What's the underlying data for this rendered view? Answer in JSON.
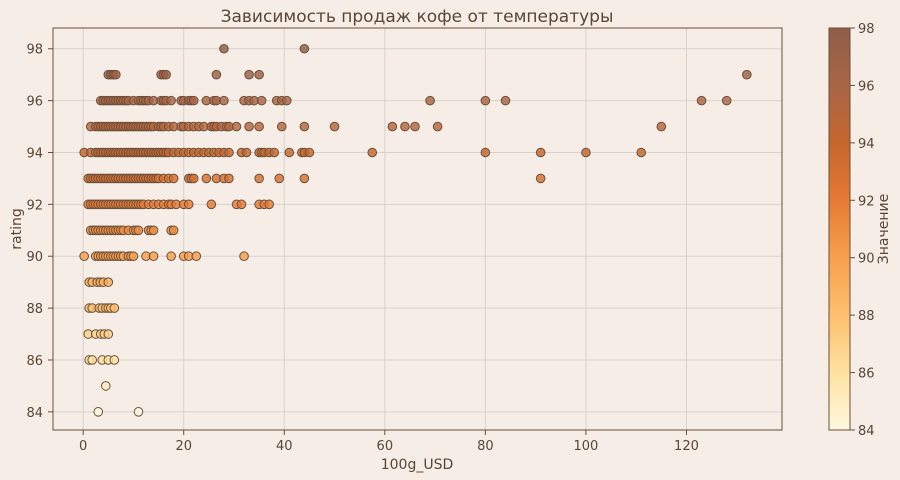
{
  "chart_data": {
    "type": "scatter",
    "title": "Зависимость продаж кофе от температуры",
    "xlabel": "100g_USD",
    "ylabel": "rating",
    "xlim": [
      -6,
      139
    ],
    "ylim": [
      83.3,
      98.8
    ],
    "x_ticks": [
      "0",
      "20",
      "40",
      "60",
      "80",
      "100",
      "120"
    ],
    "y_ticks": [
      "84",
      "86",
      "88",
      "90",
      "92",
      "94",
      "96",
      "98"
    ],
    "grid": true,
    "colorbar": {
      "label": "Значение",
      "range": [
        84,
        98
      ],
      "ticks": [
        "84",
        "86",
        "88",
        "90",
        "92",
        "94",
        "96",
        "98"
      ],
      "colors": [
        "#fff8df",
        "#fde2a0",
        "#fdbf6f",
        "#f7a04d",
        "#e57a34",
        "#c5662e",
        "#a96546",
        "#8f5e48"
      ]
    },
    "points": [
      [
        28,
        98
      ],
      [
        44,
        98
      ],
      [
        5,
        97
      ],
      [
        5.5,
        97
      ],
      [
        6,
        97
      ],
      [
        6.5,
        97
      ],
      [
        15.5,
        97
      ],
      [
        16,
        97
      ],
      [
        16.5,
        97
      ],
      [
        26.5,
        97
      ],
      [
        33,
        97
      ],
      [
        35,
        97
      ],
      [
        132,
        97
      ],
      [
        3.5,
        96
      ],
      [
        4,
        96
      ],
      [
        4.5,
        96
      ],
      [
        5,
        96
      ],
      [
        5.5,
        96
      ],
      [
        6,
        96
      ],
      [
        6.5,
        96
      ],
      [
        7,
        96
      ],
      [
        7.5,
        96
      ],
      [
        8,
        96
      ],
      [
        8.5,
        96
      ],
      [
        9,
        96
      ],
      [
        10,
        96
      ],
      [
        11,
        96
      ],
      [
        11.5,
        96
      ],
      [
        12,
        96
      ],
      [
        12.5,
        96
      ],
      [
        13,
        96
      ],
      [
        14,
        96
      ],
      [
        15.5,
        96
      ],
      [
        16,
        96
      ],
      [
        16.5,
        96
      ],
      [
        17.5,
        96
      ],
      [
        19.5,
        96
      ],
      [
        20,
        96
      ],
      [
        21,
        96
      ],
      [
        21.5,
        96
      ],
      [
        22,
        96
      ],
      [
        24.5,
        96
      ],
      [
        26,
        96
      ],
      [
        26.5,
        96
      ],
      [
        28,
        96
      ],
      [
        32,
        96
      ],
      [
        33,
        96
      ],
      [
        34,
        96
      ],
      [
        35.5,
        96
      ],
      [
        38.5,
        96
      ],
      [
        39.5,
        96
      ],
      [
        40.5,
        96
      ],
      [
        69,
        96
      ],
      [
        80,
        96
      ],
      [
        84,
        96
      ],
      [
        123,
        96
      ],
      [
        128,
        96
      ],
      [
        1.5,
        95
      ],
      [
        2.5,
        95
      ],
      [
        3,
        95
      ],
      [
        3.5,
        95
      ],
      [
        4,
        95
      ],
      [
        4.5,
        95
      ],
      [
        5,
        95
      ],
      [
        5.5,
        95
      ],
      [
        6,
        95
      ],
      [
        6.5,
        95
      ],
      [
        7,
        95
      ],
      [
        7.5,
        95
      ],
      [
        8,
        95
      ],
      [
        8.5,
        95
      ],
      [
        9,
        95
      ],
      [
        9.5,
        95
      ],
      [
        10,
        95
      ],
      [
        10.5,
        95
      ],
      [
        11,
        95
      ],
      [
        11.5,
        95
      ],
      [
        12,
        95
      ],
      [
        12.5,
        95
      ],
      [
        13,
        95
      ],
      [
        13.5,
        95
      ],
      [
        14,
        95
      ],
      [
        15,
        95
      ],
      [
        15.5,
        95
      ],
      [
        16,
        95
      ],
      [
        17,
        95
      ],
      [
        18,
        95
      ],
      [
        19.5,
        95
      ],
      [
        20,
        95
      ],
      [
        21,
        95
      ],
      [
        22,
        95
      ],
      [
        23,
        95
      ],
      [
        24,
        95
      ],
      [
        25.5,
        95
      ],
      [
        26,
        95
      ],
      [
        26.5,
        95
      ],
      [
        27.5,
        95
      ],
      [
        28.5,
        95
      ],
      [
        29,
        95
      ],
      [
        30.5,
        95
      ],
      [
        33,
        95
      ],
      [
        35,
        95
      ],
      [
        39.5,
        95
      ],
      [
        44,
        95
      ],
      [
        50,
        95
      ],
      [
        61.5,
        95
      ],
      [
        64,
        95
      ],
      [
        66,
        95
      ],
      [
        70.5,
        95
      ],
      [
        115,
        95
      ],
      [
        0.2,
        94
      ],
      [
        1.5,
        94
      ],
      [
        2.5,
        94
      ],
      [
        3,
        94
      ],
      [
        3.5,
        94
      ],
      [
        4,
        94
      ],
      [
        4.5,
        94
      ],
      [
        5,
        94
      ],
      [
        5.5,
        94
      ],
      [
        6,
        94
      ],
      [
        6.5,
        94
      ],
      [
        7,
        94
      ],
      [
        7.5,
        94
      ],
      [
        8,
        94
      ],
      [
        8.5,
        94
      ],
      [
        9,
        94
      ],
      [
        9.5,
        94
      ],
      [
        10,
        94
      ],
      [
        10.5,
        94
      ],
      [
        11,
        94
      ],
      [
        11.5,
        94
      ],
      [
        12,
        94
      ],
      [
        12.5,
        94
      ],
      [
        13,
        94
      ],
      [
        13.5,
        94
      ],
      [
        14,
        94
      ],
      [
        14.5,
        94
      ],
      [
        15,
        94
      ],
      [
        15.5,
        94
      ],
      [
        16,
        94
      ],
      [
        16.5,
        94
      ],
      [
        17,
        94
      ],
      [
        18,
        94
      ],
      [
        19,
        94
      ],
      [
        20,
        94
      ],
      [
        21,
        94
      ],
      [
        22,
        94
      ],
      [
        23,
        94
      ],
      [
        24,
        94
      ],
      [
        25,
        94
      ],
      [
        26,
        94
      ],
      [
        27,
        94
      ],
      [
        28,
        94
      ],
      [
        29,
        94
      ],
      [
        31.5,
        94
      ],
      [
        32.5,
        94
      ],
      [
        35,
        94
      ],
      [
        35.5,
        94
      ],
      [
        36,
        94
      ],
      [
        37,
        94
      ],
      [
        38,
        94
      ],
      [
        41,
        94
      ],
      [
        43.5,
        94
      ],
      [
        44,
        94
      ],
      [
        45,
        94
      ],
      [
        57.5,
        94
      ],
      [
        80,
        94
      ],
      [
        91,
        94
      ],
      [
        100,
        94
      ],
      [
        111,
        94
      ],
      [
        1,
        93
      ],
      [
        1.5,
        93
      ],
      [
        2,
        93
      ],
      [
        2.5,
        93
      ],
      [
        3,
        93
      ],
      [
        3.5,
        93
      ],
      [
        4,
        93
      ],
      [
        4.5,
        93
      ],
      [
        5,
        93
      ],
      [
        5.5,
        93
      ],
      [
        6,
        93
      ],
      [
        6.5,
        93
      ],
      [
        7,
        93
      ],
      [
        7.5,
        93
      ],
      [
        8,
        93
      ],
      [
        8.5,
        93
      ],
      [
        9,
        93
      ],
      [
        9.5,
        93
      ],
      [
        10,
        93
      ],
      [
        10.5,
        93
      ],
      [
        11,
        93
      ],
      [
        11.5,
        93
      ],
      [
        12,
        93
      ],
      [
        12.5,
        93
      ],
      [
        13,
        93
      ],
      [
        13.5,
        93
      ],
      [
        14,
        93
      ],
      [
        14.5,
        93
      ],
      [
        15,
        93
      ],
      [
        16,
        93
      ],
      [
        17,
        93
      ],
      [
        18,
        93
      ],
      [
        21,
        93
      ],
      [
        21.5,
        93
      ],
      [
        22,
        93
      ],
      [
        24.5,
        93
      ],
      [
        26.5,
        93
      ],
      [
        28,
        93
      ],
      [
        29,
        93
      ],
      [
        35,
        93
      ],
      [
        39,
        93
      ],
      [
        44,
        93
      ],
      [
        91,
        93
      ],
      [
        1,
        92
      ],
      [
        1.5,
        92
      ],
      [
        2,
        92
      ],
      [
        2.5,
        92
      ],
      [
        3,
        92
      ],
      [
        3.5,
        92
      ],
      [
        4,
        92
      ],
      [
        4.5,
        92
      ],
      [
        5,
        92
      ],
      [
        5.5,
        92
      ],
      [
        6,
        92
      ],
      [
        6.5,
        92
      ],
      [
        7,
        92
      ],
      [
        7.5,
        92
      ],
      [
        8,
        92
      ],
      [
        8.5,
        92
      ],
      [
        9,
        92
      ],
      [
        9.5,
        92
      ],
      [
        10,
        92
      ],
      [
        10.5,
        92
      ],
      [
        11,
        92
      ],
      [
        11.5,
        92
      ],
      [
        12,
        92
      ],
      [
        13,
        92
      ],
      [
        14,
        92
      ],
      [
        15,
        92
      ],
      [
        16,
        92
      ],
      [
        17,
        92
      ],
      [
        17.5,
        92
      ],
      [
        18.5,
        92
      ],
      [
        20,
        92
      ],
      [
        21,
        92
      ],
      [
        25.5,
        92
      ],
      [
        30.5,
        92
      ],
      [
        31.5,
        92
      ],
      [
        35,
        92
      ],
      [
        36,
        92
      ],
      [
        37,
        92
      ],
      [
        1.5,
        91
      ],
      [
        2,
        91
      ],
      [
        2.5,
        91
      ],
      [
        3,
        91
      ],
      [
        3.5,
        91
      ],
      [
        4,
        91
      ],
      [
        4.5,
        91
      ],
      [
        5,
        91
      ],
      [
        5.5,
        91
      ],
      [
        6,
        91
      ],
      [
        6.5,
        91
      ],
      [
        7,
        91
      ],
      [
        7.5,
        91
      ],
      [
        8,
        91
      ],
      [
        9,
        91
      ],
      [
        10,
        91
      ],
      [
        10.5,
        91
      ],
      [
        11,
        91
      ],
      [
        13,
        91
      ],
      [
        13.5,
        91
      ],
      [
        14,
        91
      ],
      [
        17.5,
        91
      ],
      [
        18,
        91
      ],
      [
        0.2,
        90
      ],
      [
        2.5,
        90
      ],
      [
        3,
        90
      ],
      [
        3.5,
        90
      ],
      [
        4,
        90
      ],
      [
        4.5,
        90
      ],
      [
        5,
        90
      ],
      [
        5.5,
        90
      ],
      [
        6,
        90
      ],
      [
        6.5,
        90
      ],
      [
        7,
        90
      ],
      [
        7.5,
        90
      ],
      [
        8,
        90
      ],
      [
        9,
        90
      ],
      [
        9.5,
        90
      ],
      [
        10,
        90
      ],
      [
        12.5,
        90
      ],
      [
        14,
        90
      ],
      [
        17.5,
        90
      ],
      [
        20,
        90
      ],
      [
        21,
        90
      ],
      [
        22.5,
        90
      ],
      [
        32,
        90
      ],
      [
        1.2,
        89
      ],
      [
        1.8,
        89
      ],
      [
        2.8,
        89
      ],
      [
        3.4,
        89
      ],
      [
        4,
        89
      ],
      [
        5,
        89
      ],
      [
        1.2,
        88
      ],
      [
        1.8,
        88
      ],
      [
        3.2,
        88
      ],
      [
        3.8,
        88
      ],
      [
        4.5,
        88
      ],
      [
        5,
        88
      ],
      [
        5.5,
        88
      ],
      [
        6.2,
        88
      ],
      [
        1,
        87
      ],
      [
        2.5,
        87
      ],
      [
        3.5,
        87
      ],
      [
        4.2,
        87
      ],
      [
        5,
        87
      ],
      [
        1.2,
        86
      ],
      [
        1.8,
        86
      ],
      [
        3.8,
        86
      ],
      [
        5,
        86
      ],
      [
        6.2,
        86
      ],
      [
        4.5,
        85
      ],
      [
        3,
        84
      ],
      [
        11,
        84
      ]
    ]
  }
}
